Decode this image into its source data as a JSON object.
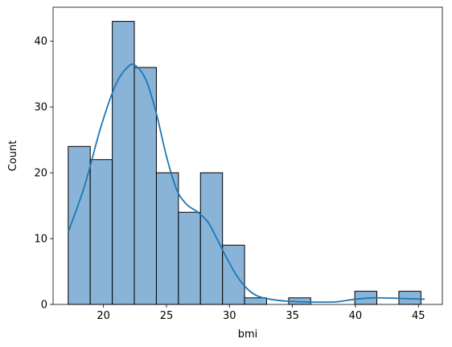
{
  "chart_data": {
    "type": "bar",
    "subtype": "histogram-with-kde",
    "xlabel": "bmi",
    "ylabel": "Count",
    "xlim": [
      16.0,
      46.9
    ],
    "ylim": [
      0,
      45.15
    ],
    "x_ticks": [
      20,
      25,
      30,
      35,
      40,
      45
    ],
    "y_ticks": [
      0,
      10,
      20,
      30,
      40
    ],
    "bins": [
      {
        "start": 17.2,
        "end": 18.95,
        "count": 24
      },
      {
        "start": 18.95,
        "end": 20.7,
        "count": 22
      },
      {
        "start": 20.7,
        "end": 22.45,
        "count": 43
      },
      {
        "start": 22.45,
        "end": 24.2,
        "count": 36
      },
      {
        "start": 24.2,
        "end": 25.95,
        "count": 20
      },
      {
        "start": 25.95,
        "end": 27.7,
        "count": 14
      },
      {
        "start": 27.7,
        "end": 29.45,
        "count": 20
      },
      {
        "start": 29.45,
        "end": 31.2,
        "count": 9
      },
      {
        "start": 31.2,
        "end": 32.95,
        "count": 1
      },
      {
        "start": 32.95,
        "end": 34.7,
        "count": 0
      },
      {
        "start": 34.7,
        "end": 36.45,
        "count": 1
      },
      {
        "start": 36.45,
        "end": 38.2,
        "count": 0
      },
      {
        "start": 38.2,
        "end": 39.95,
        "count": 0
      },
      {
        "start": 39.95,
        "end": 41.7,
        "count": 2
      },
      {
        "start": 41.7,
        "end": 43.45,
        "count": 0
      },
      {
        "start": 43.45,
        "end": 45.2,
        "count": 2
      }
    ],
    "kde": {
      "x": [
        17.2,
        18.5,
        19.8,
        21.0,
        22.0,
        22.6,
        23.4,
        24.2,
        25.0,
        25.8,
        26.6,
        27.5,
        28.3,
        29.0,
        29.8,
        30.6,
        31.4,
        32.2,
        33.2,
        34.5,
        35.8,
        37.0,
        38.5,
        40.0,
        41.5,
        43.0,
        44.5,
        45.5
      ],
      "y": [
        11,
        18,
        27,
        33.5,
        36.2,
        36.2,
        34,
        29,
        22.5,
        17.5,
        15.2,
        14,
        12.5,
        10,
        7,
        4.3,
        2.4,
        1.3,
        0.8,
        0.5,
        0.4,
        0.35,
        0.4,
        0.8,
        1.0,
        0.95,
        0.85,
        0.8
      ]
    },
    "colors": {
      "bar_fill": "#89b4d8",
      "bar_edge": "#000000",
      "kde_line": "#1f77b4"
    },
    "legend": "none",
    "grid": false
  }
}
